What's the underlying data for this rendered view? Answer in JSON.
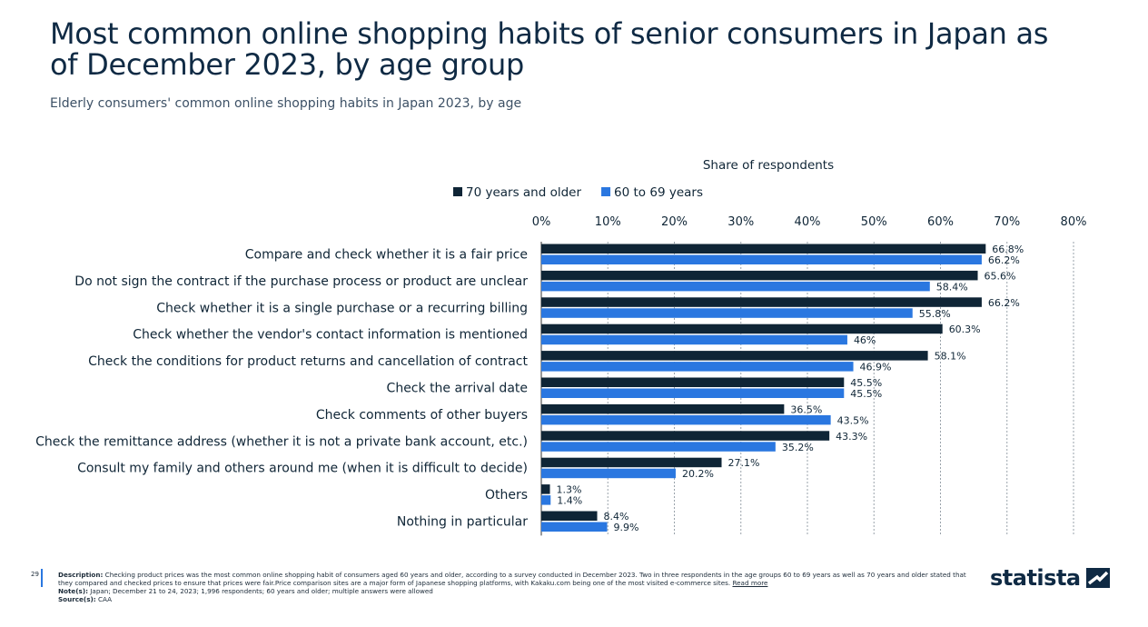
{
  "header": {
    "title": "Most common online shopping habits of senior consumers in Japan as of December 2023, by age group",
    "subtitle": "Elderly consumers' common online shopping habits in Japan 2023, by age"
  },
  "colors": {
    "series_dark": "#0f2536",
    "series_blue": "#2a77e0",
    "grid": "#9aa3ab",
    "axis": "#333333",
    "text": "#0f2536",
    "accent": "#2a77e0"
  },
  "chart_data": {
    "type": "bar",
    "orientation": "horizontal",
    "title": "Share of respondents",
    "xlabel": "Share of respondents",
    "ylabel": "",
    "xlim": [
      0,
      80
    ],
    "xticks": [
      "0%",
      "10%",
      "20%",
      "30%",
      "40%",
      "50%",
      "60%",
      "70%",
      "80%"
    ],
    "grid": true,
    "legend_position": "top",
    "categories": [
      "Compare and check whether it is a fair price",
      "Do not sign the contract if the purchase process or product are unclear",
      "Check whether it is a single purchase or a recurring billing",
      "Check whether the vendor's contact information is mentioned",
      "Check the conditions for product returns and cancellation of contract",
      "Check the arrival date",
      "Check comments of other buyers",
      "Check the remittance address (whether it is not a private bank account, etc.)",
      "Consult my family and others around me (when it is difficult to decide)",
      "Others",
      "Nothing in particular"
    ],
    "series": [
      {
        "name": "70 years and older",
        "color": "#0f2536",
        "values": [
          66.8,
          65.6,
          66.2,
          60.3,
          58.1,
          45.5,
          36.5,
          43.3,
          27.1,
          1.3,
          8.4
        ],
        "labels": [
          "66.8%",
          "65.6%",
          "66.2%",
          "60.3%",
          "58.1%",
          "45.5%",
          "36.5%",
          "43.3%",
          "27.1%",
          "1.3%",
          "8.4%"
        ]
      },
      {
        "name": "60 to 69 years",
        "color": "#2a77e0",
        "values": [
          66.2,
          58.4,
          55.8,
          46,
          46.9,
          45.5,
          43.5,
          35.2,
          20.2,
          1.4,
          9.9
        ],
        "labels": [
          "66.2%",
          "58.4%",
          "55.8%",
          "46%",
          "46.9%",
          "45.5%",
          "43.5%",
          "35.2%",
          "20.2%",
          "1.4%",
          "9.9%"
        ]
      }
    ]
  },
  "footer": {
    "page_number": "29",
    "description_label": "Description:",
    "description": "Checking product prices was the most common online shopping habit of consumers aged 60 years and older, according to a survey conducted in December 2023. Two in three respondents in the age groups 60 to 69 years as well as 70 years and older stated that they compared and checked prices to ensure that prices were fair.Price comparison sites are a major form of Japanese shopping platforms, with Kakaku.com being one of the most visited e-commerce sites.",
    "read_more": "Read more",
    "notes_label": "Note(s):",
    "notes": "Japan; December 21 to 24, 2023; 1,996 respondents; 60 years and older; multiple answers were allowed",
    "source_label": "Source(s):",
    "source": "CAA"
  },
  "logo": {
    "text": "statista",
    "icon": "statista-logo-icon"
  }
}
